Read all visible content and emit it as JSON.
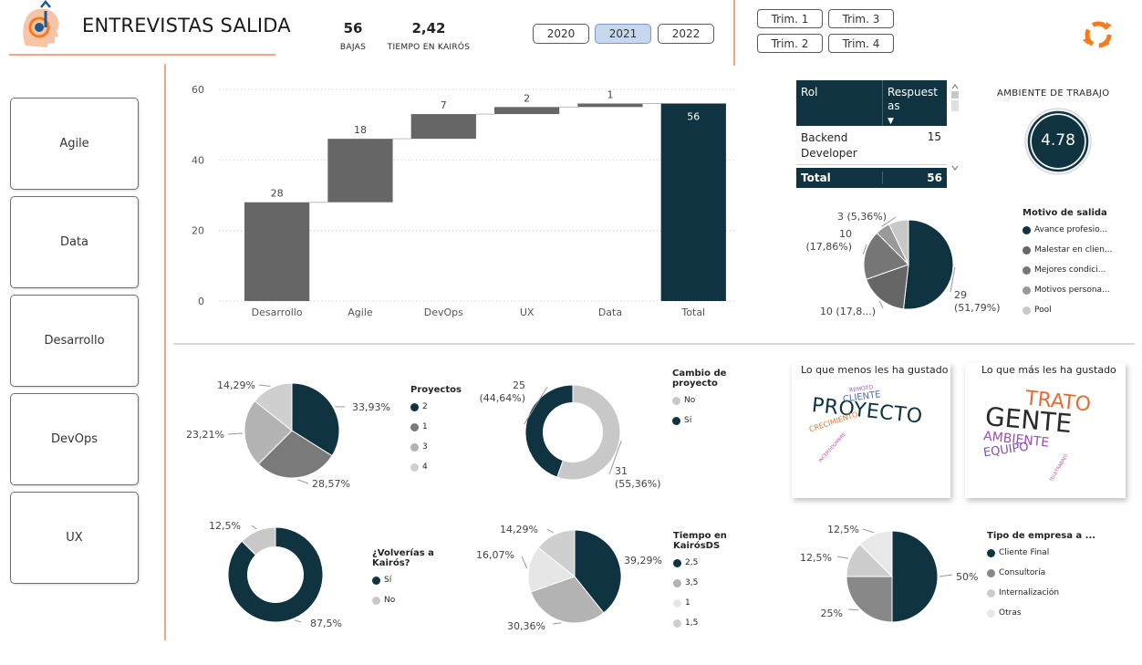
{
  "header": {
    "title": "ENTREVISTAS SALIDA",
    "kpis": [
      {
        "value": "56",
        "label": "BAJAS"
      },
      {
        "value": "2,42",
        "label": "TIEMPO EN KAIRÓS"
      }
    ],
    "years": [
      {
        "label": "2020",
        "selected": false
      },
      {
        "label": "2021",
        "selected": true
      },
      {
        "label": "2022",
        "selected": false
      }
    ],
    "trimesters": [
      "Trim. 1",
      "Trim. 3",
      "Trim. 2",
      "Trim. 4"
    ]
  },
  "sidebar": {
    "items": [
      "Agile",
      "Data",
      "Desarrollo",
      "DevOps",
      "UX"
    ]
  },
  "colors": {
    "navy": "#0f3340",
    "dark_gray": "#666666",
    "mid_gray": "#8c8c8c",
    "light_gray": "#b8b8b8",
    "lighter_gray": "#d0d0d0",
    "accent_orange": "#f47b20",
    "line_orange": "#f4a582"
  },
  "table": {
    "headers": [
      "Rol",
      "Respuestas"
    ],
    "rows": [
      [
        "Backend Developer",
        "15"
      ]
    ],
    "total_label": "Total",
    "total_value": "56"
  },
  "gauge": {
    "title": "AMBIENTE DE TRABAJO",
    "value": "4.78"
  },
  "chart_data": [
    {
      "id": "waterfall",
      "type": "bar",
      "subtype": "waterfall",
      "categories": [
        "Desarrollo",
        "Agile",
        "DevOps",
        "UX",
        "Data",
        "Total"
      ],
      "values": [
        28,
        18,
        7,
        2,
        1,
        56
      ],
      "labels": [
        "28",
        "18",
        "7",
        "2",
        "1",
        "56"
      ],
      "ylim": [
        0,
        60
      ],
      "yticks": [
        0,
        20,
        40,
        60
      ],
      "ytick_labels": [
        "0",
        "20",
        "40",
        "60"
      ]
    },
    {
      "id": "motivo",
      "type": "pie",
      "title": "Motivo de salida",
      "categories": [
        "Avance profesio...",
        "Malestar en clien...",
        "Mejores condici...",
        "Motivos persona...",
        "Pool"
      ],
      "values": [
        29,
        10,
        10,
        3,
        4
      ],
      "labels": [
        "29\n(51,79%)",
        "10 (17,8...)",
        "10\n(17,86%)",
        "3 (5,36%)",
        ""
      ],
      "colors": [
        "#0f3340",
        "#666666",
        "#777777",
        "#999999",
        "#c8c8c8"
      ]
    },
    {
      "id": "proyectos",
      "type": "pie",
      "title": "Proyectos",
      "categories": [
        "2",
        "1",
        "3",
        "4"
      ],
      "values": [
        33.93,
        28.57,
        23.21,
        14.29
      ],
      "labels": [
        "33,93%",
        "28,57%",
        "23,21%",
        "14,29%"
      ],
      "colors": [
        "#0f3340",
        "#7a7a7a",
        "#b3b3b3",
        "#cfcfcf"
      ]
    },
    {
      "id": "cambio",
      "type": "pie",
      "subtype": "donut",
      "title": "Cambio de proyecto",
      "categories": [
        "No",
        "Sí"
      ],
      "values": [
        31,
        25
      ],
      "labels": [
        "31\n(55,36%)",
        "25\n(44,64%)"
      ],
      "colors": [
        "#c8c8c8",
        "#0f3340"
      ]
    },
    {
      "id": "volverias",
      "type": "pie",
      "subtype": "donut",
      "title": "¿Volverías a Kairós?",
      "categories": [
        "Sí",
        "No"
      ],
      "values": [
        87.5,
        12.5
      ],
      "labels": [
        "87,5%",
        "12,5%"
      ],
      "colors": [
        "#0f3340",
        "#c8c8c8"
      ]
    },
    {
      "id": "tiempo",
      "type": "pie",
      "title": "Tiempo en KairósDS",
      "categories": [
        "2,5",
        "3,5",
        "1",
        "1,5"
      ],
      "values": [
        39.29,
        30.36,
        16.07,
        14.29
      ],
      "labels": [
        "39,29%",
        "30,36%",
        "16,07%",
        "14,29%"
      ],
      "colors": [
        "#0f3340",
        "#b3b3b3",
        "#e6e6e6",
        "#cfcfcf"
      ]
    },
    {
      "id": "empresa",
      "type": "pie",
      "title": "Tipo de empresa a ...",
      "categories": [
        "Cliente Final",
        "Consultoría",
        "Internalización",
        "Otras"
      ],
      "values": [
        50,
        25,
        12.5,
        12.5
      ],
      "labels": [
        "50%",
        "25%",
        "12,5%",
        "12,5%"
      ],
      "colors": [
        "#0f3340",
        "#888888",
        "#cccccc",
        "#e8e8e8"
      ]
    }
  ],
  "wordclouds": {
    "menos": {
      "title": "Lo que menos les ha gustado",
      "words": [
        "PROYECTO",
        "CLIENTE",
        "REMOTO",
        "CRECIMIENTO",
        "INCERTIDUMBRE"
      ]
    },
    "mas": {
      "title": "Lo que más les ha gustado",
      "words": [
        "GENTE",
        "TRATO",
        "AMBIENTE",
        "EQUIPO",
        "TELETRABAJO"
      ]
    }
  }
}
